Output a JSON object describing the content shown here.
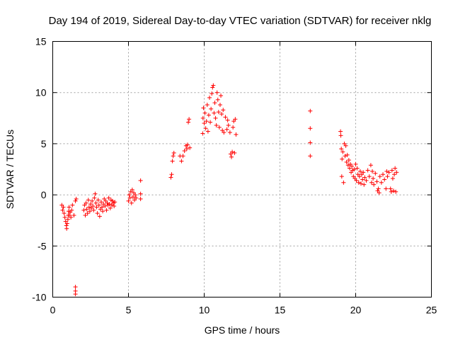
{
  "chart_data": {
    "type": "scatter",
    "title": "Day 194 of 2019, Sidereal Day-to-day VTEC variation (SDTVAR) for receiver nklg",
    "xlabel": "GPS time / hours",
    "ylabel": "SDTVAR / TECUs",
    "xlim": [
      0,
      25
    ],
    "ylim": [
      -10,
      15
    ],
    "xticks": [
      0,
      5,
      10,
      15,
      20,
      25
    ],
    "yticks": [
      -10,
      -5,
      0,
      5,
      10,
      15
    ],
    "xtick_labels": [
      "0",
      "5",
      "10",
      "15",
      "20",
      "25"
    ],
    "ytick_labels": [
      "-10",
      "-5",
      "0",
      "5",
      "10",
      "15"
    ],
    "grid": true,
    "marker": "+",
    "color": "#ff0000",
    "series": [
      {
        "name": "SDTVAR",
        "points": [
          [
            0.6,
            -1.0
          ],
          [
            0.65,
            -1.5
          ],
          [
            0.7,
            -1.2
          ],
          [
            0.75,
            -1.8
          ],
          [
            0.8,
            -2.2
          ],
          [
            0.85,
            -2.6
          ],
          [
            0.9,
            -3.0
          ],
          [
            0.92,
            -3.3
          ],
          [
            0.95,
            -2.8
          ],
          [
            1.0,
            -2.4
          ],
          [
            1.02,
            -2.0
          ],
          [
            1.05,
            -1.6
          ],
          [
            1.08,
            -1.2
          ],
          [
            1.1,
            -2.0
          ],
          [
            1.15,
            -1.7
          ],
          [
            1.2,
            -2.2
          ],
          [
            1.25,
            -1.5
          ],
          [
            1.3,
            -1.0
          ],
          [
            1.4,
            -2.0
          ],
          [
            1.5,
            -0.6
          ],
          [
            1.55,
            -0.4
          ],
          [
            1.5,
            -9.0
          ],
          [
            1.5,
            -9.4
          ],
          [
            1.5,
            -9.7
          ],
          [
            2.05,
            -1.5
          ],
          [
            2.1,
            -1.0
          ],
          [
            2.15,
            -2.0
          ],
          [
            2.2,
            -0.8
          ],
          [
            2.25,
            -1.4
          ],
          [
            2.3,
            -1.8
          ],
          [
            2.35,
            -0.5
          ],
          [
            2.4,
            -1.2
          ],
          [
            2.45,
            -1.6
          ],
          [
            2.5,
            -0.9
          ],
          [
            2.55,
            -1.3
          ],
          [
            2.6,
            -0.6
          ],
          [
            2.65,
            -1.1
          ],
          [
            2.7,
            -1.5
          ],
          [
            2.75,
            -0.3
          ],
          [
            2.8,
            0.1
          ],
          [
            2.85,
            -0.8
          ],
          [
            2.9,
            -1.2
          ],
          [
            2.95,
            -1.8
          ],
          [
            3.0,
            -0.5
          ],
          [
            3.05,
            -1.0
          ],
          [
            3.1,
            -2.1
          ],
          [
            3.15,
            -1.4
          ],
          [
            3.2,
            -0.7
          ],
          [
            3.25,
            -1.2
          ],
          [
            3.3,
            -1.6
          ],
          [
            3.35,
            -0.9
          ],
          [
            3.4,
            -0.4
          ],
          [
            3.45,
            -1.1
          ],
          [
            3.5,
            -0.6
          ],
          [
            3.55,
            -1.5
          ],
          [
            3.6,
            -0.8
          ],
          [
            3.65,
            -1.0
          ],
          [
            3.7,
            -0.3
          ],
          [
            3.75,
            -0.9
          ],
          [
            3.8,
            -1.3
          ],
          [
            3.85,
            -0.5
          ],
          [
            3.9,
            -1.0
          ],
          [
            3.95,
            -0.6
          ],
          [
            4.0,
            -0.8
          ],
          [
            4.05,
            -1.1
          ],
          [
            4.1,
            -0.7
          ],
          [
            5.0,
            -0.6
          ],
          [
            5.05,
            0.0
          ],
          [
            5.1,
            -0.3
          ],
          [
            5.15,
            0.3
          ],
          [
            5.2,
            -0.8
          ],
          [
            5.25,
            0.5
          ],
          [
            5.3,
            -0.2
          ],
          [
            5.35,
            0.2
          ],
          [
            5.4,
            -0.5
          ],
          [
            5.45,
            0.0
          ],
          [
            5.5,
            -0.3
          ],
          [
            5.8,
            1.4
          ],
          [
            5.8,
            0.1
          ],
          [
            5.8,
            -0.4
          ],
          [
            7.8,
            1.7
          ],
          [
            7.85,
            2.0
          ],
          [
            7.9,
            3.3
          ],
          [
            7.95,
            3.8
          ],
          [
            8.0,
            4.1
          ],
          [
            8.4,
            3.8
          ],
          [
            8.5,
            3.3
          ],
          [
            8.6,
            3.8
          ],
          [
            8.7,
            4.3
          ],
          [
            8.8,
            4.8
          ],
          [
            8.85,
            4.5
          ],
          [
            8.9,
            4.9
          ],
          [
            8.95,
            7.1
          ],
          [
            9.0,
            7.4
          ],
          [
            9.05,
            4.6
          ],
          [
            9.9,
            6.0
          ],
          [
            9.92,
            7.5
          ],
          [
            9.95,
            8.5
          ],
          [
            10.0,
            7.0
          ],
          [
            10.05,
            8.0
          ],
          [
            10.1,
            6.5
          ],
          [
            10.15,
            7.2
          ],
          [
            10.2,
            8.8
          ],
          [
            10.25,
            6.2
          ],
          [
            10.3,
            7.8
          ],
          [
            10.35,
            9.5
          ],
          [
            10.4,
            7.1
          ],
          [
            10.45,
            8.4
          ],
          [
            10.5,
            9.9
          ],
          [
            10.55,
            10.5
          ],
          [
            10.6,
            10.7
          ],
          [
            10.65,
            8.0
          ],
          [
            10.7,
            9.0
          ],
          [
            10.75,
            7.5
          ],
          [
            10.8,
            6.8
          ],
          [
            10.85,
            10.0
          ],
          [
            10.9,
            9.3
          ],
          [
            10.95,
            8.1
          ],
          [
            11.0,
            6.6
          ],
          [
            11.05,
            8.8
          ],
          [
            11.1,
            9.7
          ],
          [
            11.15,
            7.9
          ],
          [
            11.2,
            6.3
          ],
          [
            11.25,
            8.3
          ],
          [
            11.3,
            6.1
          ],
          [
            11.4,
            7.6
          ],
          [
            11.5,
            6.4
          ],
          [
            11.55,
            7.3
          ],
          [
            11.6,
            6.8
          ],
          [
            11.7,
            6.1
          ],
          [
            11.75,
            4.0
          ],
          [
            11.8,
            3.7
          ],
          [
            11.85,
            4.2
          ],
          [
            11.9,
            6.6
          ],
          [
            11.95,
            7.2
          ],
          [
            12.0,
            4.1
          ],
          [
            12.05,
            7.4
          ],
          [
            12.1,
            5.9
          ],
          [
            17.0,
            8.2
          ],
          [
            17.0,
            6.5
          ],
          [
            17.0,
            5.1
          ],
          [
            17.0,
            3.8
          ],
          [
            19.0,
            6.2
          ],
          [
            19.02,
            5.8
          ],
          [
            19.05,
            4.5
          ],
          [
            19.08,
            1.8
          ],
          [
            19.1,
            3.5
          ],
          [
            19.15,
            4.2
          ],
          [
            19.2,
            1.2
          ],
          [
            19.25,
            5.0
          ],
          [
            19.3,
            3.8
          ],
          [
            19.35,
            4.8
          ],
          [
            19.4,
            3.2
          ],
          [
            19.45,
            3.9
          ],
          [
            19.5,
            2.9
          ],
          [
            19.55,
            3.4
          ],
          [
            19.6,
            2.6
          ],
          [
            19.65,
            3.0
          ],
          [
            19.7,
            2.2
          ],
          [
            19.75,
            2.8
          ],
          [
            19.8,
            2.4
          ],
          [
            19.85,
            1.8
          ],
          [
            19.9,
            2.5
          ],
          [
            19.95,
            1.6
          ],
          [
            20.0,
            3.0
          ],
          [
            20.05,
            1.4
          ],
          [
            20.1,
            2.6
          ],
          [
            20.15,
            2.0
          ],
          [
            20.2,
            1.2
          ],
          [
            20.25,
            1.8
          ],
          [
            20.3,
            2.3
          ],
          [
            20.35,
            1.1
          ],
          [
            20.4,
            2.0
          ],
          [
            20.45,
            1.5
          ],
          [
            20.5,
            2.2
          ],
          [
            20.55,
            1.0
          ],
          [
            20.6,
            1.7
          ],
          [
            20.7,
            1.4
          ],
          [
            20.8,
            2.4
          ],
          [
            20.9,
            1.8
          ],
          [
            21.0,
            2.9
          ],
          [
            21.05,
            1.2
          ],
          [
            21.1,
            2.3
          ],
          [
            21.15,
            1.6
          ],
          [
            21.2,
            1.0
          ],
          [
            21.3,
            2.1
          ],
          [
            21.4,
            1.3
          ],
          [
            21.45,
            0.4
          ],
          [
            21.5,
            0.6
          ],
          [
            21.55,
            0.2
          ],
          [
            21.6,
            1.8
          ],
          [
            21.7,
            1.2
          ],
          [
            21.8,
            2.0
          ],
          [
            21.9,
            1.5
          ],
          [
            22.0,
            0.6
          ],
          [
            22.05,
            2.3
          ],
          [
            22.1,
            1.8
          ],
          [
            22.2,
            2.2
          ],
          [
            22.3,
            0.6
          ],
          [
            22.35,
            0.3
          ],
          [
            22.4,
            2.4
          ],
          [
            22.45,
            1.6
          ],
          [
            22.5,
            0.4
          ],
          [
            22.55,
            2.0
          ],
          [
            22.6,
            2.6
          ],
          [
            22.65,
            0.3
          ],
          [
            22.7,
            2.2
          ]
        ]
      }
    ]
  }
}
